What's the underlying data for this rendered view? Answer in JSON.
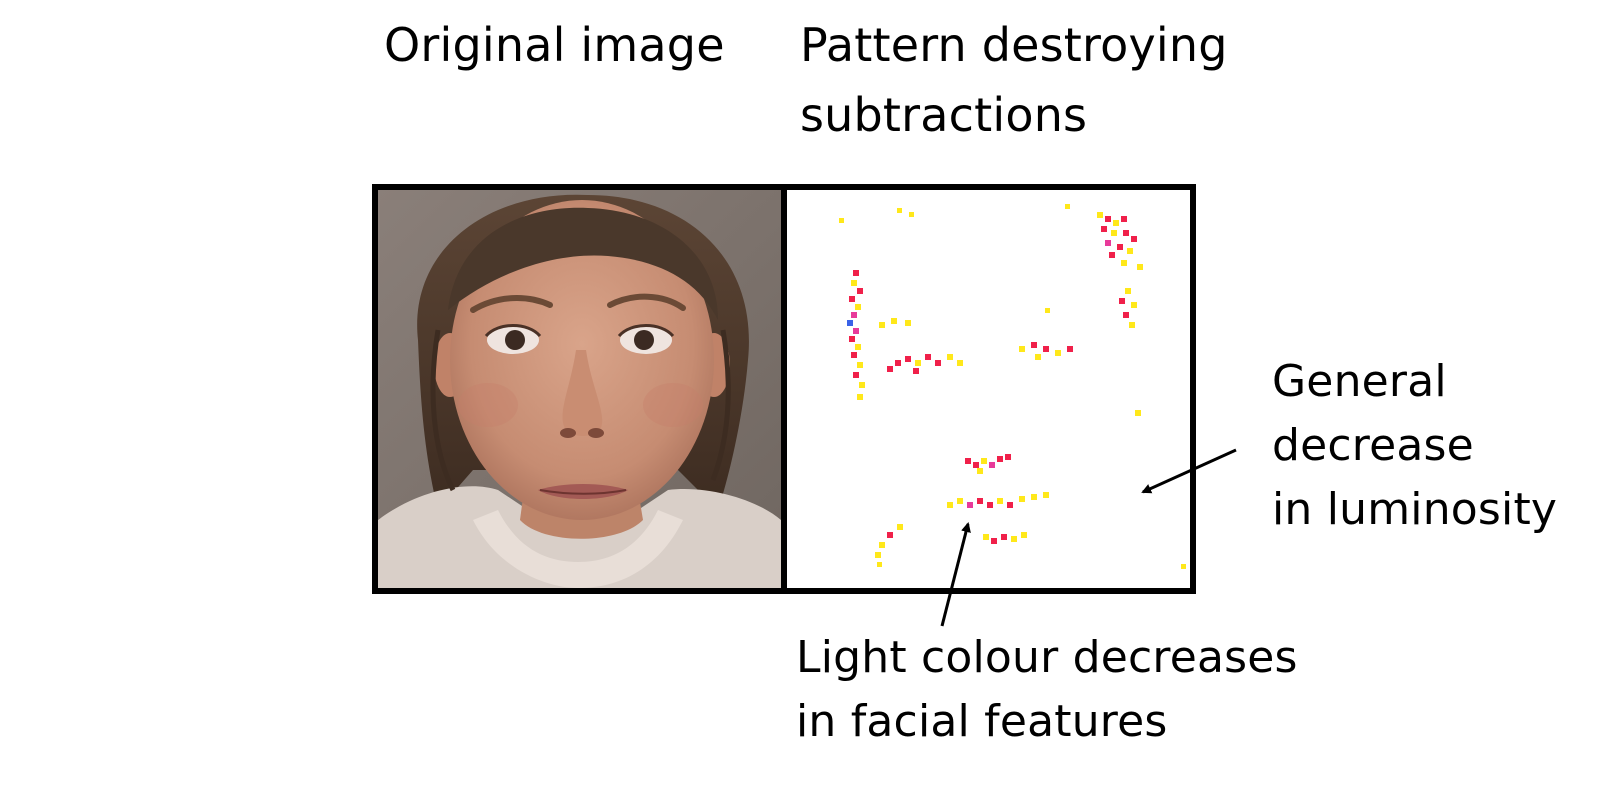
{
  "titles": {
    "original": "Original image",
    "pattern": "Pattern destroying\nsubtractions"
  },
  "annotations": {
    "general": "General\ndecrease\nin luminosity",
    "light": "Light colour decreases\nin facial features"
  },
  "colors": {
    "background": "#ffffff",
    "frame": "#000000",
    "arrow": "#000000",
    "speck_red": "#f0204a",
    "speck_yellow": "#ffe81a",
    "speck_magenta": "#e83a9a",
    "speck_blue": "#3a62e8"
  }
}
